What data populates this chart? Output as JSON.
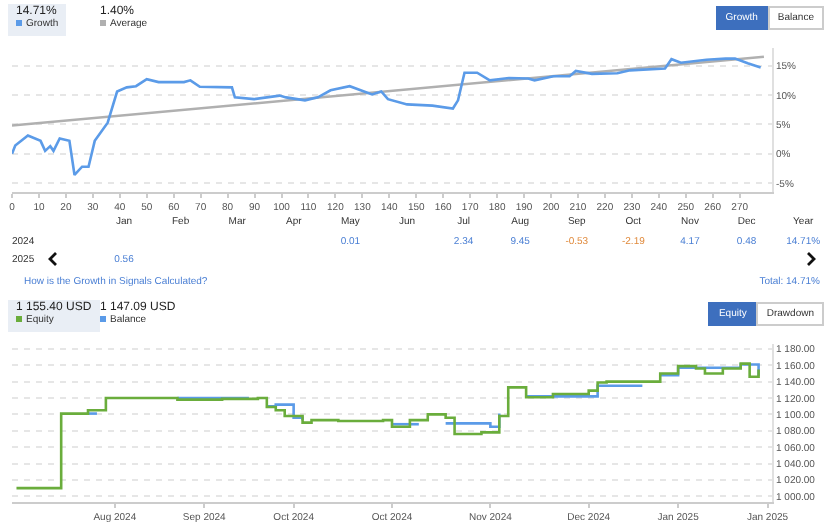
{
  "chart_data": [
    {
      "type": "line",
      "legend": "top left",
      "grid": "y",
      "xlim": [
        0,
        282
      ],
      "ylim": [
        -6.5,
        18
      ],
      "xticks": [
        0,
        10,
        20,
        30,
        40,
        50,
        60,
        70,
        80,
        90,
        100,
        110,
        120,
        130,
        140,
        150,
        160,
        170,
        180,
        190,
        200,
        210,
        220,
        230,
        240,
        250,
        260,
        270
      ],
      "yticks": [
        {
          "value": -5,
          "label": "-5%"
        },
        {
          "value": 0,
          "label": "0%"
        },
        {
          "value": 5,
          "label": "5%"
        },
        {
          "value": 10,
          "label": "10%"
        },
        {
          "value": 15,
          "label": "15%"
        }
      ],
      "annotations": [
        "14.71%",
        "1.40%",
        "Growth",
        "Balance"
      ],
      "series": [
        {
          "name": "Growth",
          "color": "#5b9be8",
          "x": [
            0,
            1.2,
            5.9,
            10.6,
            12.3,
            14.2,
            15.4,
            17.7,
            21.3,
            23.2,
            26,
            28.4,
            30.7,
            35.5,
            39,
            42.6,
            46,
            50,
            54.4,
            63.8,
            66.2,
            69.7,
            81.6,
            82.7,
            89.8,
            99.3,
            101.7,
            108.7,
            113.5,
            118.2,
            125.3,
            133.6,
            137,
            139.5,
            146.6,
            156,
            163.6,
            165.5,
            167.9,
            172.6,
            177.3,
            184.4,
            191.5,
            193.9,
            200.9,
            206.9,
            209.2,
            215.2,
            224.6,
            229.3,
            242.3,
            244.7,
            248.2,
            257.7,
            264.8,
            268.3,
            273,
            277.8
          ],
          "values": [
            0,
            1.4,
            3.1,
            2.2,
            0.5,
            1.3,
            0.5,
            2.6,
            2.2,
            -3.6,
            -2.2,
            -2.2,
            2.2,
            5.3,
            10.6,
            11.3,
            11.5,
            12.7,
            12.2,
            12.2,
            12.5,
            11.4,
            11.3,
            9.6,
            9.3,
            9.9,
            9.6,
            9.1,
            9.6,
            10.8,
            11.5,
            10.1,
            10.6,
            9.3,
            8.4,
            8.2,
            7.7,
            9.1,
            13.8,
            13.8,
            12.5,
            12.9,
            12.8,
            12.5,
            13.2,
            13.2,
            14.1,
            13.6,
            13.7,
            14.2,
            14.5,
            16.1,
            15.5,
            16,
            16.2,
            16.2,
            15.4,
            14.7
          ]
        },
        {
          "name": "Average",
          "color": "#b0b0b0",
          "x": [
            0,
            279
          ],
          "values": [
            4.8,
            16.5
          ]
        }
      ]
    },
    {
      "type": "other",
      "categories": [
        "Jan",
        "Feb",
        "Mar",
        "Apr",
        "May",
        "Jun",
        "Jul",
        "Aug",
        "Sep",
        "Oct",
        "Nov",
        "Dec",
        "Year"
      ],
      "annotations": [
        "How is the Growth in Signals Calculated?",
        "Total: 14.71%"
      ],
      "series": [
        {
          "name": "2024",
          "values": [
            null,
            null,
            null,
            null,
            0.01,
            null,
            2.34,
            9.45,
            -0.53,
            -2.19,
            4.17,
            0.48,
            14.71
          ],
          "value_labels": [
            null,
            null,
            null,
            null,
            "0.01",
            null,
            "2.34",
            "9.45",
            "-0.53",
            "-2.19",
            "4.17",
            "0.48",
            "14.71%"
          ],
          "colors": [
            null,
            null,
            null,
            null,
            "#4a7fd4",
            null,
            "#4a7fd4",
            "#4a7fd4",
            "#e08a3c",
            "#e08a3c",
            "#4a7fd4",
            "#4a7fd4",
            "#4a7fd4"
          ]
        },
        {
          "name": "2025",
          "values": [
            0.56,
            null,
            null,
            null,
            null,
            null,
            null,
            null,
            null,
            null,
            null,
            null,
            null
          ],
          "value_labels": [
            "0.56",
            null,
            null,
            null,
            null,
            null,
            null,
            null,
            null,
            null,
            null,
            null,
            null
          ],
          "colors": [
            "#4a7fd4",
            null,
            null,
            null,
            null,
            null,
            null,
            null,
            null,
            null,
            null,
            null,
            null
          ]
        }
      ]
    },
    {
      "type": "step",
      "legend": "top left",
      "grid": "y",
      "ylim": [
        993,
        1186
      ],
      "categories": [
        null,
        null,
        null,
        null,
        null,
        null,
        null,
        null,
        null,
        null,
        null,
        "Aug 2024",
        null,
        null,
        null,
        null,
        null,
        null,
        null,
        null,
        null,
        "Sep 2024",
        null,
        null,
        null,
        null,
        null,
        null,
        null,
        null,
        null,
        "Oct 2024",
        null,
        null,
        null,
        null,
        null,
        null,
        null,
        null,
        null,
        null,
        "Oct 2024",
        null,
        null,
        null,
        null,
        null,
        null,
        null,
        null,
        null,
        null,
        "Nov 2024",
        null,
        null,
        null,
        null,
        null,
        null,
        null,
        null,
        null,
        null,
        "Dec 2024",
        null,
        null,
        null,
        null,
        null,
        null,
        null,
        null,
        null,
        "Jan 2025",
        null,
        null,
        null,
        null,
        null,
        null,
        null,
        null,
        null,
        "Jan 2025"
      ],
      "yticks": [
        {
          "value": 1000,
          "label": "1 000.00"
        },
        {
          "value": 1020,
          "label": "1 020.00"
        },
        {
          "value": 1040,
          "label": "1 040.00"
        },
        {
          "value": 1060,
          "label": "1 060.00"
        },
        {
          "value": 1080,
          "label": "1 080.00"
        },
        {
          "value": 1100,
          "label": "1 100.00"
        },
        {
          "value": 1120,
          "label": "1 120.00"
        },
        {
          "value": 1140,
          "label": "1 140.00"
        },
        {
          "value": 1160,
          "label": "1 160.00"
        },
        {
          "value": 1180,
          "label": "1 180.00"
        }
      ],
      "annotations": [
        "1 155.40 USD",
        "1 147.09 USD",
        "Equity",
        "Drawdown"
      ],
      "series": [
        {
          "name": "Equity",
          "color": "#6aad3c",
          "values": [
            1010,
            1010,
            1010,
            1010,
            1010,
            1101,
            1101,
            1101,
            1105,
            1105,
            1120,
            1120,
            1120,
            1120,
            1120,
            1120,
            1120,
            1120,
            1118,
            1118,
            1118,
            1118,
            1118,
            1119,
            1119,
            1119,
            1119,
            1120,
            1109,
            1105,
            1098,
            1098,
            1090,
            1093,
            1093,
            1093,
            1092,
            1092,
            1092,
            1092,
            1092,
            1093,
            1085,
            1085,
            1093,
            1093,
            1100,
            1100,
            1096,
            1076,
            1076,
            1076,
            1078,
            1078,
            1098,
            1133,
            1133,
            1121,
            1121,
            1121,
            1125,
            1125,
            1125,
            1125,
            1129,
            1139,
            1140,
            1140,
            1140,
            1140,
            1140,
            1140,
            1150,
            1150,
            1159,
            1159,
            1156,
            1150,
            1150,
            1156,
            1156,
            1162,
            1146,
            1155,
            null
          ]
        },
        {
          "name": "Balance",
          "color": "#5b9be8",
          "values": [
            null,
            null,
            null,
            null,
            null,
            null,
            null,
            null,
            1101,
            1101,
            null,
            null,
            null,
            null,
            null,
            null,
            null,
            null,
            1120,
            1120,
            1120,
            1120,
            1120,
            1120,
            1120,
            1120,
            1120,
            null,
            1110,
            1112,
            1112,
            1096,
            1093,
            null,
            null,
            null,
            null,
            null,
            null,
            null,
            null,
            null,
            1088,
            1088,
            1088,
            1088,
            null,
            null,
            1089,
            1089,
            1089,
            1089,
            1089,
            1085,
            1101,
            null,
            null,
            1122,
            1122,
            1122,
            1122,
            1122,
            1122,
            1122,
            1122,
            1135,
            1135,
            1135,
            1135,
            1135,
            1135,
            null,
            1148,
            1148,
            1157,
            1157,
            1157,
            1157,
            1157,
            1157,
            1157,
            1161,
            1161,
            1147,
            null
          ]
        }
      ]
    }
  ]
}
